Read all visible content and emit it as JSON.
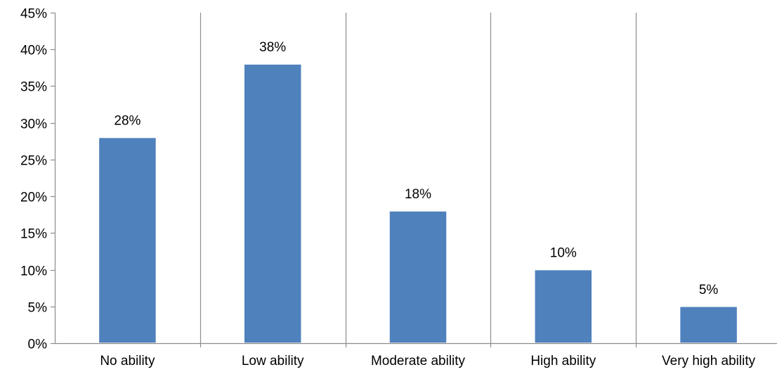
{
  "chart_data": {
    "type": "bar",
    "title": "",
    "xlabel": "",
    "ylabel": "",
    "categories": [
      "No ability",
      "Low ability",
      "Moderate ability",
      "High ability",
      "Very high ability"
    ],
    "values": [
      28,
      38,
      18,
      10,
      5
    ],
    "data_labels": [
      "28%",
      "38%",
      "18%",
      "10%",
      "5%"
    ],
    "ylim": [
      0,
      45
    ],
    "yticks": [
      0,
      5,
      10,
      15,
      20,
      25,
      30,
      35,
      40,
      45
    ],
    "ytick_labels": [
      "0%",
      "5%",
      "10%",
      "15%",
      "20%",
      "25%",
      "30%",
      "35%",
      "40%",
      "45%"
    ],
    "bar_color": "#4F81BD",
    "grid": "vertical separators between categories",
    "legend": "none"
  }
}
